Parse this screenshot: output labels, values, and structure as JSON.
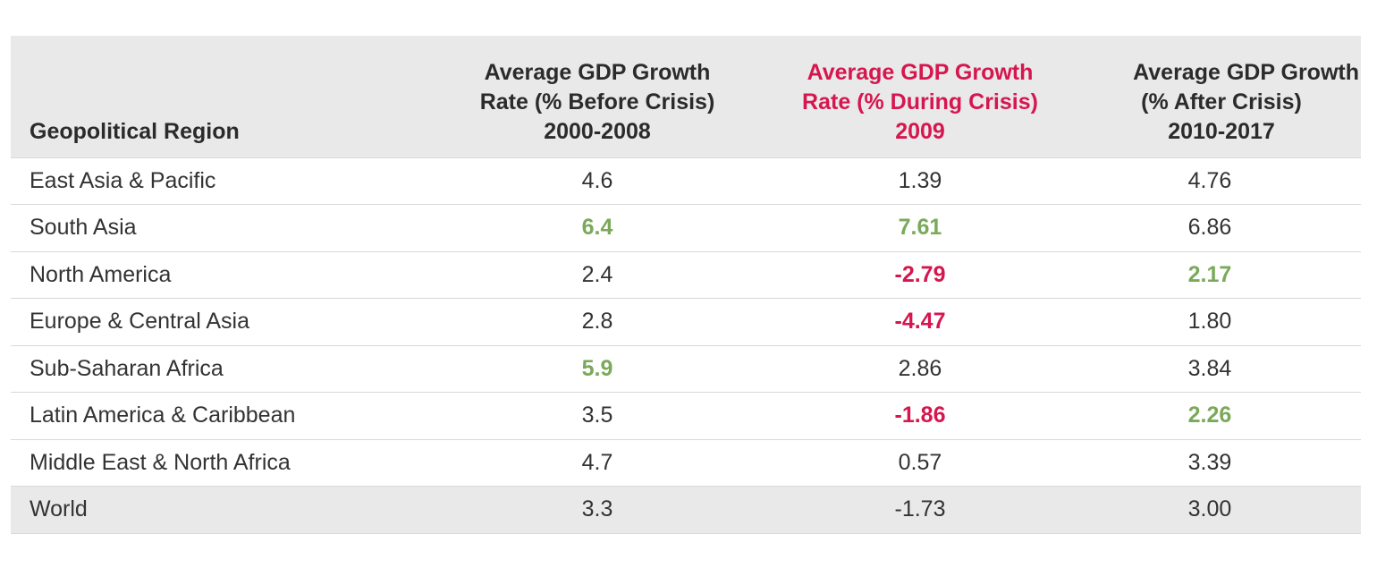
{
  "table": {
    "headers": {
      "region": "Geopolitical Region",
      "before": [
        "Average GDP Growth",
        "Rate (% Before Crisis)",
        "2000-2008"
      ],
      "during": [
        "Average GDP Growth",
        "Rate (% During Crisis)",
        "2009"
      ],
      "after": [
        "Average GDP Growth",
        "(% After Crisis)",
        "2010-2017"
      ]
    },
    "rows": [
      {
        "region": "East Asia & Pacific",
        "before": "4.6",
        "during": "1.39",
        "after": "4.76",
        "before_style": "",
        "during_style": "",
        "after_style": ""
      },
      {
        "region": "South Asia",
        "before": "6.4",
        "during": "7.61",
        "after": "6.86",
        "before_style": "pos",
        "during_style": "pos",
        "after_style": ""
      },
      {
        "region": "North America",
        "before": "2.4",
        "during": "-2.79",
        "after": "2.17",
        "before_style": "",
        "during_style": "neg",
        "after_style": "pos"
      },
      {
        "region": "Europe & Central Asia",
        "before": "2.8",
        "during": "-4.47",
        "after": "1.80",
        "before_style": "",
        "during_style": "neg",
        "after_style": ""
      },
      {
        "region": "Sub-Saharan Africa",
        "before": "5.9",
        "during": "2.86",
        "after": "3.84",
        "before_style": "pos",
        "during_style": "",
        "after_style": ""
      },
      {
        "region": "Latin America & Caribbean",
        "before": "3.5",
        "during": "-1.86",
        "after": "2.26",
        "before_style": "",
        "during_style": "neg",
        "after_style": "pos"
      },
      {
        "region": "Middle East & North Africa",
        "before": "4.7",
        "during": "0.57",
        "after": "3.39",
        "before_style": "",
        "during_style": "",
        "after_style": ""
      },
      {
        "region": "World",
        "before": "3.3",
        "during": "-1.73",
        "after": "3.00",
        "before_style": "",
        "during_style": "",
        "after_style": ""
      }
    ]
  },
  "colors": {
    "header_bg": "#e9e9e9",
    "highlight_positive": "#7aa95a",
    "highlight_negative": "#d6164e",
    "text": "#333333"
  }
}
